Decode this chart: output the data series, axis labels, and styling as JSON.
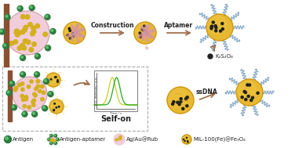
{
  "bg_color": "#ffffff",
  "legend_items": [
    {
      "label": "Antigen",
      "color": "#2d8a4e"
    },
    {
      "label": "Antigen-aptamer",
      "color": "#c8a0b0"
    },
    {
      "label": "Ag/Au@Rub",
      "color": "#e8c8d4"
    },
    {
      "label": "MIL-100(Fe)@Fe₃O₄",
      "color": "#e8b830"
    }
  ],
  "text_construction": "Construction",
  "text_aptamer": "Aptamer",
  "text_selfon": "Self-on",
  "text_ssdna": "ssDNA",
  "text_k2s2o8": "K₂S₂O₈",
  "gold_color": "#e8b830",
  "gold_edge": "#c89010",
  "pink_color": "#f0c8d8",
  "pink_edge": "#c09090",
  "dark_green": "#2d7a40",
  "light_green": "#60c870",
  "blue_wavy": "#88aac8",
  "arrow_color": "#a07050",
  "dna_pink": "#e090a0",
  "dna_gray": "#b0a0c0",
  "dot_color": "#222222",
  "yellow_dot": "#d4b020",
  "electrode_color": "#8B5030",
  "chart_border": "#888888",
  "chart_peak1": "#c8d020",
  "chart_peak2": "#20a820"
}
